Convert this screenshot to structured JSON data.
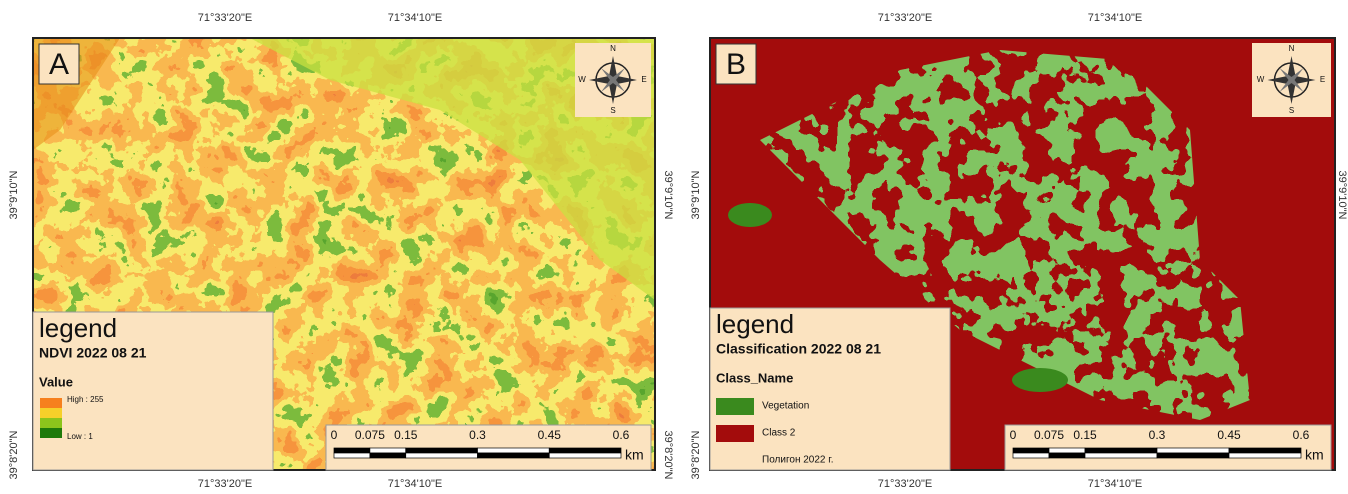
{
  "panels": [
    {
      "label": "A",
      "top_lon": [
        "71°33'20\"E",
        "71°34'10\"E"
      ],
      "bottom_lon": [
        "71°33'20\"E",
        "71°34'10\"E"
      ],
      "left_lat": [
        "39°9'10\"N",
        "39°8'20\"N"
      ],
      "right_lat": [
        "39°9'10\"N",
        "39°8'20\"N"
      ],
      "compass": {
        "n": "N",
        "s": "S",
        "w": "W",
        "e": "E"
      },
      "legend": {
        "heading": "legend",
        "title": "NDVI 2022 08 21",
        "field": "Value",
        "items": [
          "High : 255",
          "Low : 1"
        ]
      },
      "scale": {
        "ticks": [
          0,
          0.075,
          0.15,
          0.3,
          0.45,
          0.6
        ],
        "unit": "km"
      }
    },
    {
      "label": "B",
      "top_lon": [
        "71°33'20\"E",
        "71°34'10\"E"
      ],
      "bottom_lon": [
        "71°33'20\"E",
        "71°34'10\"E"
      ],
      "left_lat": [
        "39°9'10\"N",
        "39°8'20\"N"
      ],
      "right_lat": [
        "39°9'10\"N"
      ],
      "compass": {
        "n": "N",
        "s": "S",
        "w": "W",
        "e": "E"
      },
      "legend": {
        "heading": "legend",
        "title": "Classification 2022 08 21",
        "field": "Class_Name",
        "items": [
          "Vegetation",
          "Class 2",
          "Полигон 2022 г."
        ]
      },
      "scale": {
        "ticks": [
          0,
          0.075,
          0.15,
          0.3,
          0.45,
          0.6
        ],
        "unit": "km"
      }
    }
  ]
}
